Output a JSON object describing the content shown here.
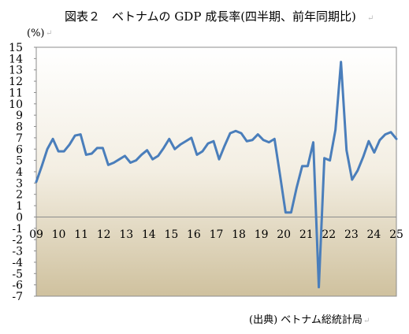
{
  "chart_data": {
    "type": "line",
    "title": "図表２　ベトナムの GDP 成長率(四半期、前年同期比)",
    "ylabel": "(%)",
    "xlabel": "",
    "source": "(出典) ベトナム総統計局",
    "ylim": [
      -7,
      15
    ],
    "y_ticks": [
      15,
      14,
      13,
      12,
      11,
      10,
      9,
      8,
      7,
      6,
      5,
      4,
      3,
      2,
      1,
      0,
      -1,
      -2,
      -3,
      -4,
      -5,
      -6,
      -7
    ],
    "x_tick_labels": [
      "09",
      "10",
      "11",
      "12",
      "13",
      "14",
      "15",
      "16",
      "17",
      "18",
      "19",
      "20",
      "21",
      "22",
      "23",
      "24",
      "25"
    ],
    "x_start_year": 2009,
    "grid": false,
    "legend": "none",
    "series": [
      {
        "color": "#4a7ebb",
        "values": [
          3.1,
          4.5,
          6.0,
          6.9,
          5.8,
          5.8,
          6.4,
          7.2,
          7.3,
          5.5,
          5.6,
          6.1,
          6.1,
          4.6,
          4.8,
          5.1,
          5.4,
          4.8,
          5.0,
          5.5,
          5.9,
          5.1,
          5.4,
          6.1,
          6.9,
          6.0,
          6.4,
          6.7,
          7.0,
          5.5,
          5.8,
          6.5,
          6.7,
          5.1,
          6.3,
          7.4,
          7.6,
          7.4,
          6.7,
          6.8,
          7.3,
          6.8,
          6.6,
          6.9,
          3.7,
          0.4,
          0.4,
          2.6,
          4.5,
          4.5,
          6.6,
          -6.2,
          5.2,
          5.0,
          7.7,
          13.7,
          5.9,
          3.3,
          4.1,
          5.3,
          6.7,
          5.7,
          6.8,
          7.3,
          7.5,
          6.9
        ]
      }
    ]
  }
}
